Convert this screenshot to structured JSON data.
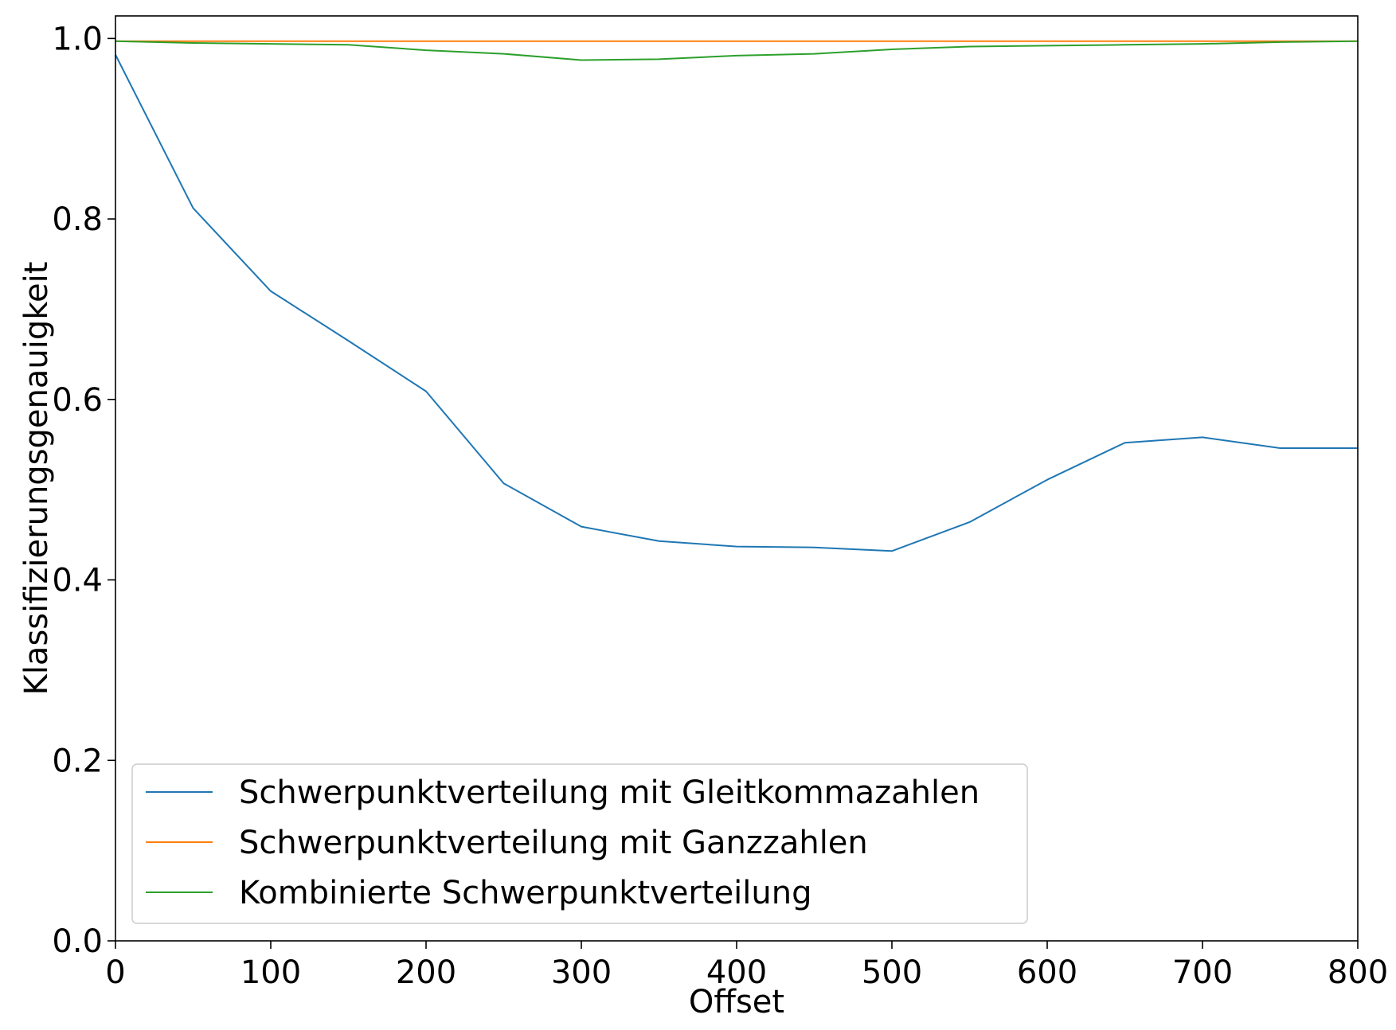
{
  "chart_data": {
    "type": "line",
    "title": "",
    "xlabel": "Offset",
    "ylabel": "Klassifizierungsgenauigkeit",
    "xlim": [
      0,
      800
    ],
    "ylim": [
      0,
      1.025
    ],
    "xticks": [
      0,
      100,
      200,
      300,
      400,
      500,
      600,
      700,
      800
    ],
    "xtick_labels": [
      "0",
      "100",
      "200",
      "300",
      "400",
      "500",
      "600",
      "700",
      "800"
    ],
    "yticks": [
      0.0,
      0.2,
      0.4,
      0.6,
      0.8,
      1.0
    ],
    "ytick_labels": [
      "0.0",
      "0.2",
      "0.4",
      "0.6",
      "0.8",
      "1.0"
    ],
    "grid": false,
    "legend_position": "lower-left",
    "x": [
      0,
      50,
      100,
      150,
      200,
      250,
      300,
      350,
      400,
      450,
      500,
      550,
      600,
      650,
      700,
      750,
      800
    ],
    "series": [
      {
        "name": "Schwerpunktverteilung mit Gleitkommazahlen",
        "color": "#1f77b4",
        "values": [
          0.982,
          0.812,
          0.72,
          0.665,
          0.609,
          0.507,
          0.459,
          0.443,
          0.437,
          0.436,
          0.432,
          0.464,
          0.511,
          0.552,
          0.558,
          0.546,
          0.546
        ]
      },
      {
        "name": "Schwerpunktverteilung mit Ganzzahlen",
        "color": "#ff7f0e",
        "values": [
          0.997,
          0.997,
          0.997,
          0.997,
          0.997,
          0.997,
          0.997,
          0.997,
          0.997,
          0.997,
          0.997,
          0.997,
          0.997,
          0.997,
          0.997,
          0.997,
          0.997
        ]
      },
      {
        "name": "Kombinierte Schwerpunktverteilung",
        "color": "#2ca02c",
        "values": [
          0.997,
          0.995,
          0.994,
          0.993,
          0.987,
          0.983,
          0.976,
          0.977,
          0.981,
          0.983,
          0.988,
          0.991,
          0.992,
          0.993,
          0.994,
          0.996,
          0.997
        ]
      }
    ]
  }
}
